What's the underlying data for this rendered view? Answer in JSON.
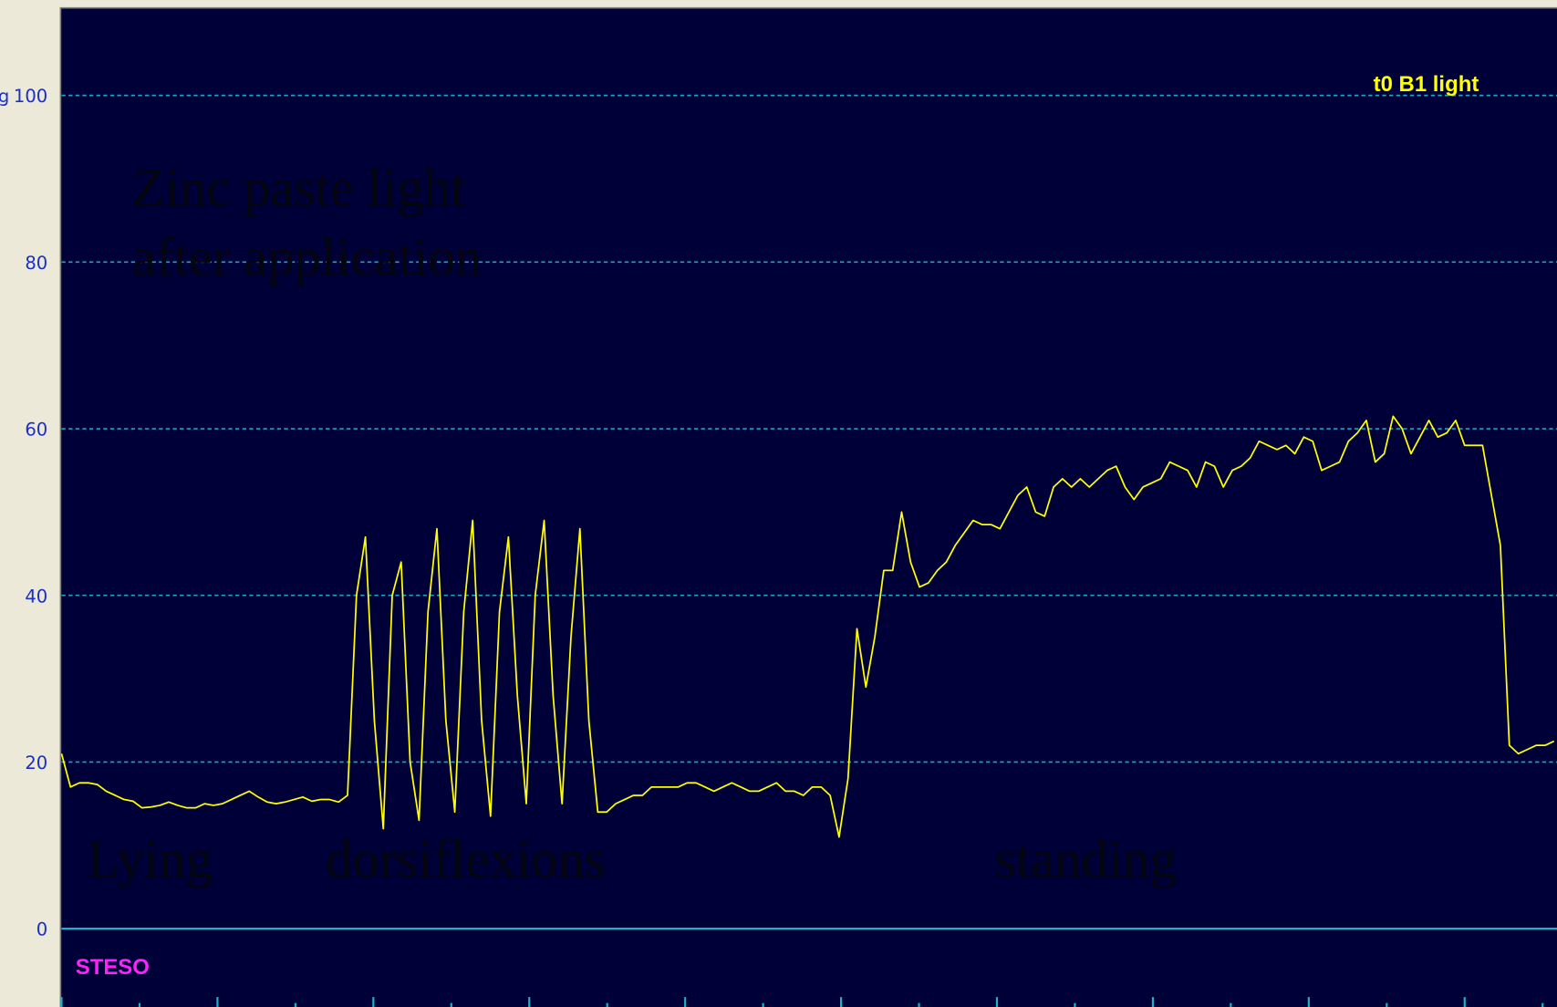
{
  "chart_data": {
    "type": "line",
    "ylabel": "g",
    "series": [
      {
        "name": "t0 B1 light",
        "color": "#ffff00",
        "values": [
          21,
          17,
          17.5,
          17.5,
          17.3,
          16.5,
          16,
          15.5,
          15.3,
          14.5,
          14.6,
          14.8,
          15.2,
          14.8,
          14.5,
          14.5,
          15,
          14.8,
          15,
          15.5,
          16,
          16.5,
          15.8,
          15.2,
          15,
          15.2,
          15.5,
          15.8,
          15.3,
          15.5,
          15.5,
          15.2,
          16,
          40,
          47,
          25,
          12,
          40,
          44,
          20,
          13,
          38,
          48,
          25,
          14,
          38,
          49,
          25,
          13.5,
          38,
          47,
          28,
          15,
          40,
          49,
          28,
          15,
          35,
          48,
          25,
          14,
          14,
          15,
          15.5,
          16,
          16,
          17,
          17,
          17,
          17,
          17.5,
          17.5,
          17,
          16.5,
          17,
          17.5,
          17,
          16.5,
          16.5,
          17,
          17.5,
          16.5,
          16.5,
          16,
          17,
          17,
          16,
          11,
          18,
          36,
          29,
          35,
          43,
          43,
          50,
          44,
          41,
          41.5,
          43,
          44,
          46,
          47.5,
          49,
          48.5,
          48.5,
          48,
          50,
          52,
          53,
          50,
          49.5,
          53,
          54,
          53,
          54,
          53,
          54,
          55,
          55.5,
          53,
          51.5,
          53,
          53.5,
          54,
          56,
          55.5,
          55,
          53,
          56,
          55.5,
          53,
          55,
          55.5,
          56.5,
          58.5,
          58,
          57.5,
          58,
          57,
          59,
          58.5,
          55,
          55.5,
          56,
          58.5,
          59.5,
          61,
          56,
          57,
          61.5,
          60,
          57,
          59,
          61,
          59,
          59.5,
          61,
          58,
          58,
          58,
          52,
          46,
          22,
          21,
          21.5,
          22,
          22,
          22.5
        ]
      }
    ],
    "ylim": [
      -9.4,
      110.5
    ],
    "yticks": [
      0,
      20,
      40,
      60,
      80,
      100
    ],
    "grid": true,
    "annotations": [
      "Zinc paste light",
      "after application",
      "Lying",
      "dorsiflexions",
      "standing",
      "STESO"
    ]
  }
}
